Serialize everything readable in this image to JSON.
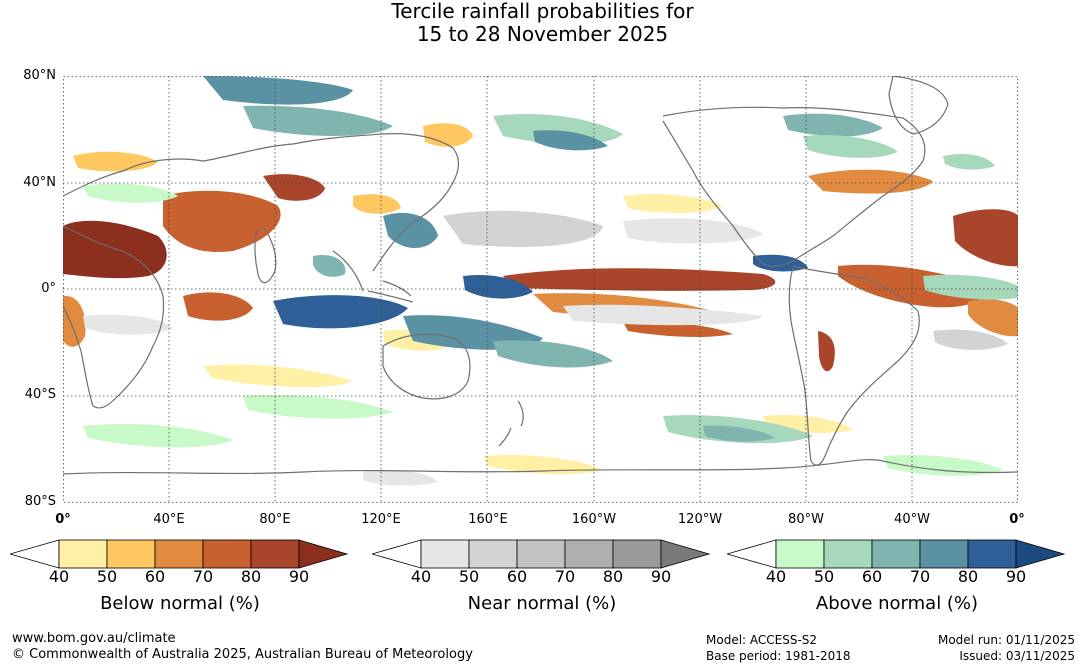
{
  "title_line1": "Tercile rainfall probabilities for",
  "title_line2": "15 to 28 November 2025",
  "map": {
    "lat_labels": [
      "80°N",
      "40°N",
      "0°",
      "40°S",
      "80°S"
    ],
    "lon_labels": [
      "0°",
      "40°E",
      "80°E",
      "120°E",
      "160°E",
      "160°W",
      "120°W",
      "80°W",
      "40°W",
      "0°"
    ],
    "background_color": "#ffffff",
    "coastline_color": "#6f6f6f",
    "grid_color": "#444444"
  },
  "legends": [
    {
      "title": "Below normal (%)",
      "ticks": [
        "40",
        "50",
        "60",
        "70",
        "80",
        "90"
      ],
      "colors": [
        "#ffffff",
        "#fff0a6",
        "#ffc75f",
        "#e08b3f",
        "#c8612f",
        "#a8452a",
        "#8c2f1e"
      ]
    },
    {
      "title": "Near normal (%)",
      "ticks": [
        "40",
        "50",
        "60",
        "70",
        "80",
        "90"
      ],
      "colors": [
        "#ffffff",
        "#e6e6e6",
        "#d3d3d3",
        "#c2c2c2",
        "#afafaf",
        "#9a9a9a",
        "#7a7a7a"
      ]
    },
    {
      "title": "Above normal (%)",
      "ticks": [
        "40",
        "50",
        "60",
        "70",
        "80",
        "90"
      ],
      "colors": [
        "#ffffff",
        "#c8f9c8",
        "#a6d9bb",
        "#7fb4b0",
        "#5a92a4",
        "#2f5f97",
        "#1c4a80"
      ]
    }
  ],
  "footer": {
    "website": "www.bom.gov.au/climate",
    "copyright": "© Commonwealth of Australia 2025, Australian Bureau of Meteorology",
    "model": "Model: ACCESS-S2",
    "base_period": "Base period: 1981-2018",
    "model_run": "Model run: 01/11/2025",
    "issued": "Issued: 03/11/2025"
  }
}
